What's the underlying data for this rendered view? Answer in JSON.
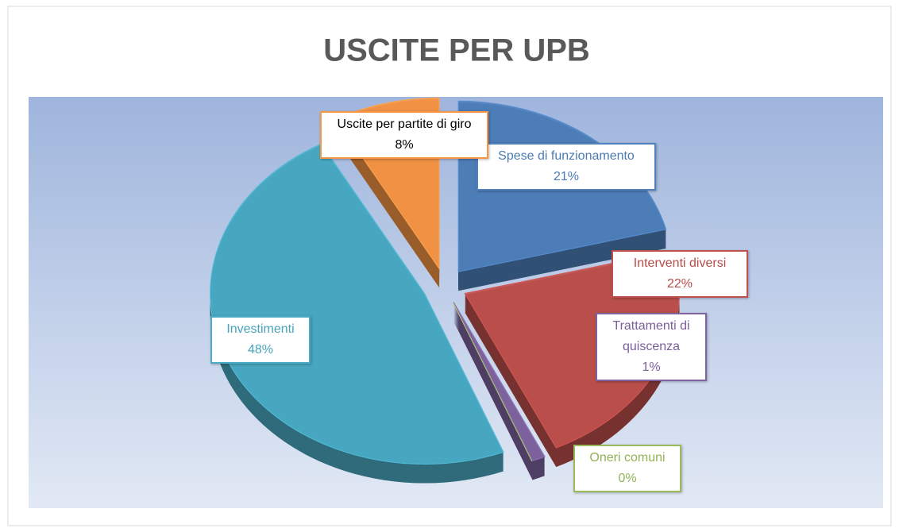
{
  "chart_data": {
    "type": "pie",
    "title": "USCITE PER UPB",
    "categories": [
      "Spese di funzionamento",
      "Interventi diversi",
      "Trattamenti di quiscenza",
      "Oneri comuni",
      "Investimenti",
      "Uscite per partite di giro"
    ],
    "values": [
      21,
      22,
      1,
      0,
      48,
      8
    ],
    "value_labels": [
      "21%",
      "22%",
      "1%",
      "0%",
      "48%",
      "8%"
    ],
    "colors": [
      "#4f81bd",
      "#c0504d",
      "#8064a2",
      "#9bbb59",
      "#4bacc6",
      "#f79646"
    ]
  }
}
